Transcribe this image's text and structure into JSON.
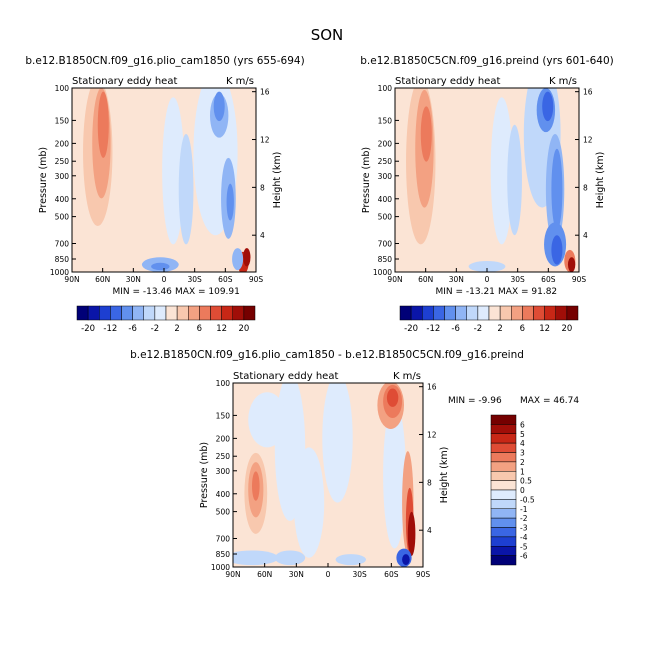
{
  "figure": {
    "title": "SON"
  },
  "chart_data": [
    {
      "type": "heatmap",
      "title": "b.e12.B1850CN.f09_g16.plio_cam1850 (yrs 655-694)",
      "subtitle_left": "Stationary eddy heat",
      "subtitle_right": "K m/s",
      "ylabel": "Pressure (mb)",
      "ylabel_right": "Height (km)",
      "x_ticks": [
        "90N",
        "60N",
        "30N",
        "0",
        "30S",
        "60S",
        "90S"
      ],
      "y_ticks": [
        "100",
        "150",
        "200",
        "250",
        "300",
        "400",
        "500",
        "700",
        "850",
        "1000"
      ],
      "y_ticks_right": [
        "16",
        "12",
        "8",
        "4"
      ],
      "min_label": "MIN = -13.46",
      "max_label": "MAX = 109.91",
      "colorbar": {
        "orientation": "horizontal",
        "labels": [
          "-20",
          "-12",
          "-6",
          "-2",
          "2",
          "6",
          "12",
          "20"
        ]
      }
    },
    {
      "type": "heatmap",
      "title": "b.e12.B1850C5CN.f09_g16.preind (yrs 601-640)",
      "subtitle_left": "Stationary eddy heat",
      "subtitle_right": "K m/s",
      "ylabel": "Pressure (mb)",
      "ylabel_right": "Height (km)",
      "x_ticks": [
        "90N",
        "60N",
        "30N",
        "0",
        "30S",
        "60S",
        "90S"
      ],
      "y_ticks": [
        "100",
        "150",
        "200",
        "250",
        "300",
        "400",
        "500",
        "700",
        "850",
        "1000"
      ],
      "y_ticks_right": [
        "16",
        "12",
        "8",
        "4"
      ],
      "min_label": "MIN = -13.21",
      "max_label": "MAX = 91.82",
      "colorbar": {
        "orientation": "horizontal",
        "labels": [
          "-20",
          "-12",
          "-6",
          "-2",
          "2",
          "6",
          "12",
          "20"
        ]
      }
    },
    {
      "type": "heatmap",
      "title": "b.e12.B1850CN.f09_g16.plio_cam1850 - b.e12.B1850C5CN.f09_g16.preind",
      "subtitle_left": "Stationary eddy heat",
      "subtitle_right": "K m/s",
      "ylabel": "Pressure (mb)",
      "ylabel_right": "Height (km)",
      "x_ticks": [
        "90N",
        "60N",
        "30N",
        "0",
        "30S",
        "60S",
        "90S"
      ],
      "y_ticks": [
        "100",
        "150",
        "200",
        "250",
        "300",
        "400",
        "500",
        "700",
        "850",
        "1000"
      ],
      "y_ticks_right": [
        "16",
        "12",
        "8",
        "4"
      ],
      "min_label": "MIN = -9.96",
      "max_label": "MAX = 46.74",
      "colorbar": {
        "orientation": "vertical",
        "labels": [
          "6",
          "5",
          "4",
          "3",
          "2",
          "1",
          "0.5",
          "0",
          "-0.5",
          "-1",
          "-2",
          "-3",
          "-4",
          "-5",
          "-6"
        ]
      }
    }
  ],
  "colors": {
    "palette": [
      "#000077",
      "#0a15a8",
      "#1d3fd1",
      "#3a66e4",
      "#6190ee",
      "#90b5f5",
      "#c0d8fa",
      "#deebfd",
      "#fbe4d5",
      "#f8c8ae",
      "#f3a182",
      "#ec7a5c",
      "#df4c35",
      "#c82716",
      "#a00e08",
      "#750000"
    ]
  }
}
